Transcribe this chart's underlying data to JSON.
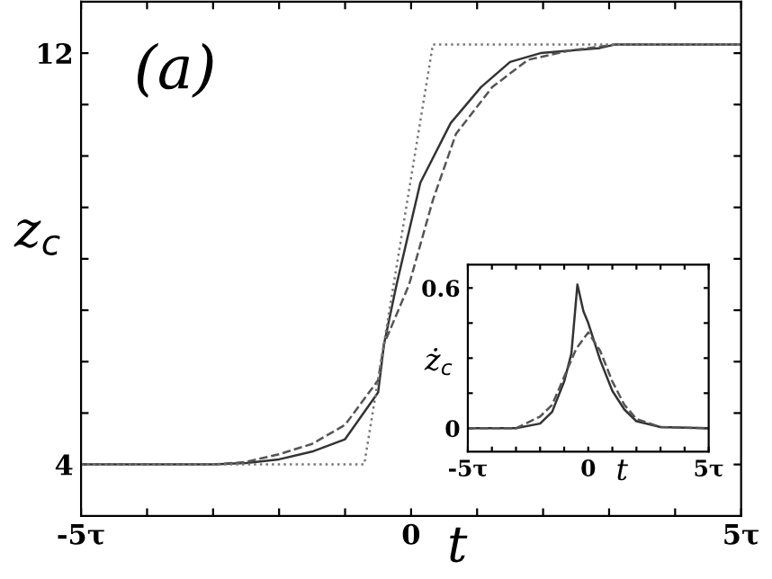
{
  "chart_data": [
    {
      "type": "line",
      "xlabel": "t",
      "ylabel": "z$_{c}$",
      "annotations": [
        "(a)"
      ],
      "legend": false,
      "grid": false,
      "marker": "none",
      "xlim": [
        -5,
        5
      ],
      "ylim": [
        3,
        13
      ],
      "xticks": [
        {
          "value": -5,
          "label": "-5τ"
        },
        {
          "value": -4,
          "label": null
        },
        {
          "value": -3,
          "label": null
        },
        {
          "value": -2,
          "label": null
        },
        {
          "value": -1,
          "label": null
        },
        0,
        {
          "value": 1,
          "label": null
        },
        {
          "value": 2,
          "label": null
        },
        {
          "value": 3,
          "label": null
        },
        {
          "value": 4,
          "label": null
        },
        {
          "value": 5,
          "label": "5τ"
        }
      ],
      "yticks": [
        4,
        {
          "value": 5,
          "label": null
        },
        {
          "value": 6,
          "label": null
        },
        {
          "value": 7,
          "label": null
        },
        {
          "value": 8,
          "label": null
        },
        {
          "value": 9,
          "label": null
        },
        {
          "value": 10,
          "label": null
        },
        {
          "value": 11,
          "label": null
        },
        12
      ],
      "series": [
        {
          "color": "#333333",
          "line_style": "solid",
          "x": [
            -5,
            -3,
            -2.5,
            -2,
            -1.5,
            -1,
            -0.5,
            -0.41,
            -0.22,
            0.14,
            0.6,
            1.06,
            1.5,
            1.96,
            2.86,
            3.1,
            5
          ],
          "values": [
            4,
            4,
            4.03,
            4.1,
            4.25,
            4.49,
            5.4,
            6.34,
            7.5,
            9.48,
            10.64,
            11.34,
            11.83,
            12.0,
            12.1,
            12.17,
            12.17
          ]
        },
        {
          "color": "#555555",
          "line_style": "dashed",
          "x": [
            -5,
            -3,
            -2.5,
            -2,
            -1.5,
            -1,
            -0.5,
            -0.41,
            -0.03,
            0.33,
            0.68,
            1.23,
            1.77,
            2.4,
            3.1,
            5
          ],
          "values": [
            4,
            4,
            4.05,
            4.2,
            4.4,
            4.77,
            5.64,
            6.34,
            7.5,
            9.14,
            10.43,
            11.34,
            11.87,
            12.05,
            12.17,
            12.17
          ]
        },
        {
          "color": "#777777",
          "line_style": "dotted",
          "x": [
            -5,
            -0.71,
            0.33,
            5
          ],
          "values": [
            4,
            4,
            12.17,
            12.17
          ]
        }
      ]
    },
    {
      "type": "line",
      "xlabel": "t",
      "ylabel": "ż$_{c}$",
      "legend": false,
      "grid": false,
      "marker": "none",
      "xlim": [
        -5,
        5
      ],
      "ylim": [
        -0.1,
        0.7
      ],
      "xticks": [
        {
          "value": -5,
          "label": "-5τ"
        },
        {
          "value": -4,
          "label": null
        },
        {
          "value": -3,
          "label": null
        },
        {
          "value": -2,
          "label": null
        },
        {
          "value": -1,
          "label": null
        },
        0,
        {
          "value": 1,
          "label": null
        },
        {
          "value": 2,
          "label": null
        },
        {
          "value": 3,
          "label": null
        },
        {
          "value": 4,
          "label": null
        },
        {
          "value": 5,
          "label": "5τ"
        }
      ],
      "yticks": [
        0,
        {
          "value": 0.15,
          "label": null
        },
        {
          "value": 0.3,
          "label": null
        },
        {
          "value": 0.45,
          "label": null
        },
        0.6
      ],
      "series": [
        {
          "color": "#333333",
          "line_style": "solid",
          "x": [
            -5,
            -3,
            -2,
            -1.5,
            -1,
            -0.7,
            -0.45,
            -0.2,
            0,
            0.5,
            1,
            1.5,
            2,
            3,
            5
          ],
          "values": [
            0,
            0,
            0.02,
            0.07,
            0.2,
            0.32,
            0.615,
            0.5,
            0.45,
            0.29,
            0.16,
            0.08,
            0.03,
            0.005,
            0
          ]
        },
        {
          "color": "#555555",
          "line_style": "dashed",
          "x": [
            -5,
            -3,
            -2,
            -1.5,
            -1,
            -0.5,
            0,
            0.5,
            1,
            1.5,
            2,
            3,
            5
          ],
          "values": [
            0,
            0,
            0.05,
            0.1,
            0.22,
            0.34,
            0.41,
            0.33,
            0.2,
            0.1,
            0.04,
            0.005,
            0
          ]
        }
      ]
    }
  ]
}
